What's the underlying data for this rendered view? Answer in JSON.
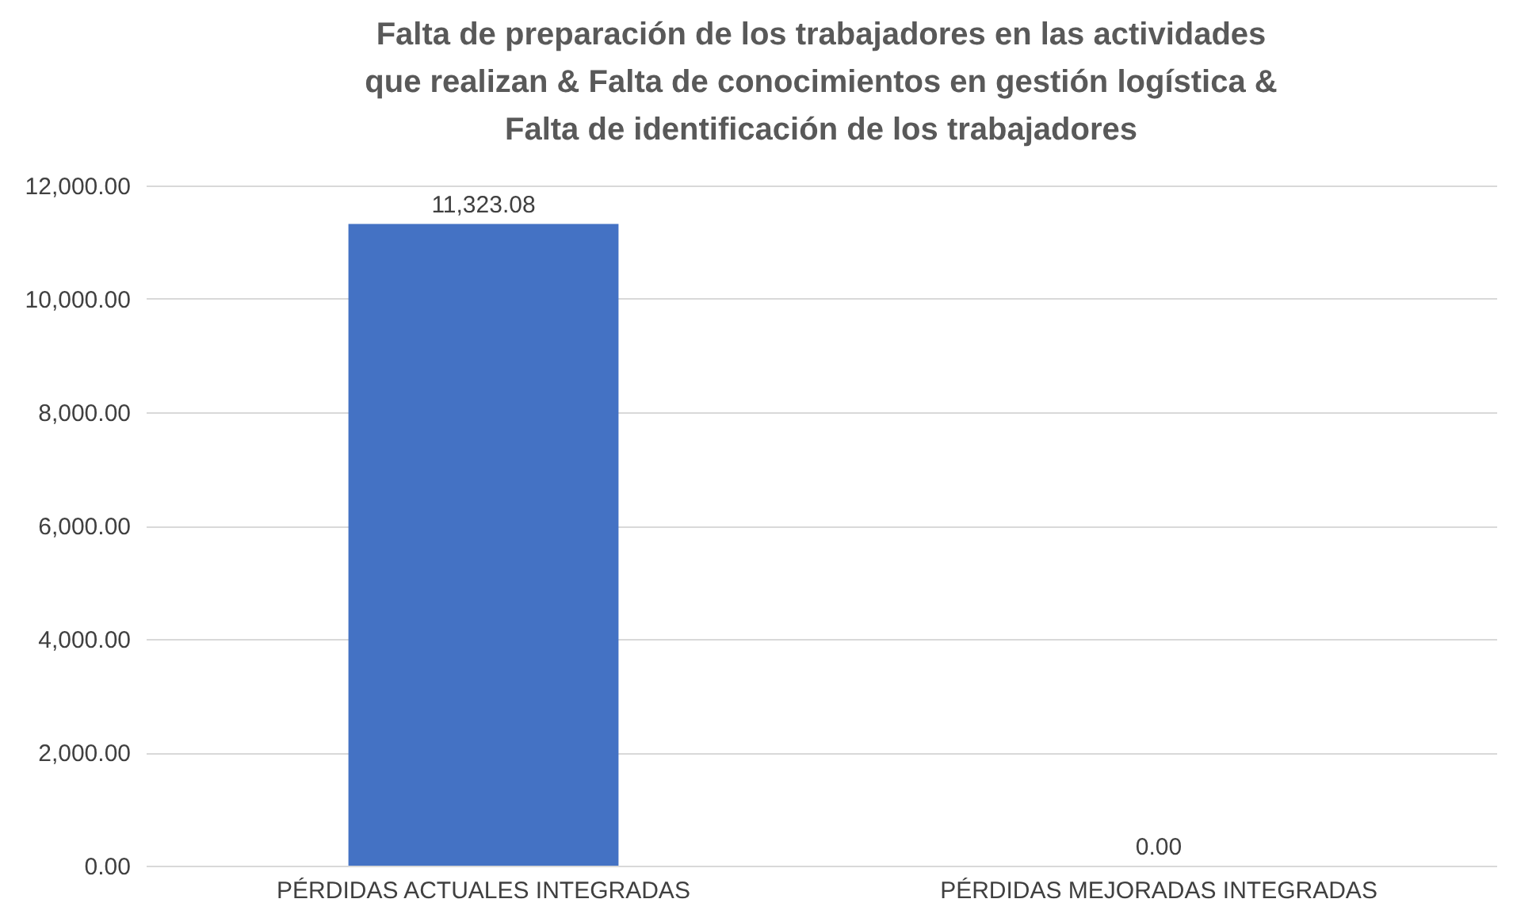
{
  "chart_data": {
    "type": "bar",
    "title": "Falta de preparación de los trabajadores en las actividades\nque realizan & Falta de conocimientos en gestión logística &\nFalta de identificación de los trabajadores",
    "categories": [
      "PÉRDIDAS ACTUALES INTEGRADAS",
      "PÉRDIDAS MEJORADAS INTEGRADAS"
    ],
    "values": [
      11323.08,
      0
    ],
    "value_labels": [
      "11,323.08",
      "0.00"
    ],
    "color": "#4472c4",
    "ylim": [
      0,
      12000
    ],
    "yticks": [
      {
        "value": 0,
        "label": "0.00"
      },
      {
        "value": 2000,
        "label": "2,000.00"
      },
      {
        "value": 4000,
        "label": "4,000.00"
      },
      {
        "value": 6000,
        "label": "6,000.00"
      },
      {
        "value": 8000,
        "label": "8,000.00"
      },
      {
        "value": 10000,
        "label": "10,000.00"
      },
      {
        "value": 12000,
        "label": "12,000.00"
      }
    ],
    "grid": "y"
  }
}
